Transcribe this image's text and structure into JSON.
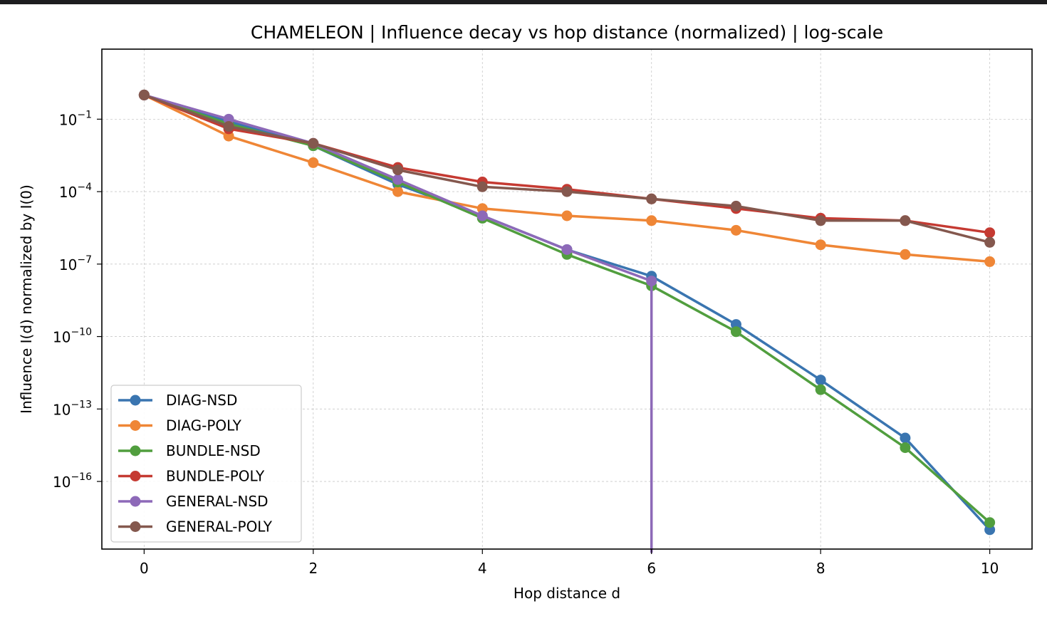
{
  "chart_data": {
    "type": "line",
    "title": "CHAMELEON | Influence decay vs hop distance (normalized) | log-scale",
    "xlabel": "Hop distance d",
    "ylabel": "Influence I(d) normalized by I(0)",
    "yscale": "log",
    "xlim": [
      -0.5,
      10.5
    ],
    "ylim_log10": [
      -18.8,
      1.9
    ],
    "grid": true,
    "legend_position": "lower-left",
    "x_ticks": [
      {
        "value": 0,
        "label": "0"
      },
      {
        "value": 2,
        "label": "2"
      },
      {
        "value": 4,
        "label": "4"
      },
      {
        "value": 6,
        "label": "6"
      },
      {
        "value": 8,
        "label": "8"
      },
      {
        "value": 10,
        "label": "10"
      }
    ],
    "y_ticks": [
      {
        "exp": -1,
        "label": "10",
        "sup": "−1"
      },
      {
        "exp": -4,
        "label": "10",
        "sup": "−4"
      },
      {
        "exp": -7,
        "label": "10",
        "sup": "−7"
      },
      {
        "exp": -10,
        "label": "10",
        "sup": "−10"
      },
      {
        "exp": -13,
        "label": "10",
        "sup": "−13"
      },
      {
        "exp": -16,
        "label": "10",
        "sup": "−16"
      }
    ],
    "x": [
      0,
      1,
      2,
      3,
      4,
      5,
      6,
      7,
      8,
      9,
      10
    ],
    "series": [
      {
        "name": "DIAG-NSD",
        "color": "#3a75b0",
        "log10_values": [
          0.0,
          -1.1,
          -2.1,
          -3.7,
          -5.0,
          -6.4,
          -7.5,
          -9.5,
          -11.8,
          -14.2,
          -18.0
        ]
      },
      {
        "name": "DIAG-POLY",
        "color": "#ef8636",
        "log10_values": [
          0.0,
          -1.7,
          -2.8,
          -4.0,
          -4.7,
          -5.0,
          -5.2,
          -5.6,
          -6.2,
          -6.6,
          -6.9
        ]
      },
      {
        "name": "BUNDLE-NSD",
        "color": "#519e3e",
        "log10_values": [
          0.0,
          -1.2,
          -2.1,
          -3.6,
          -5.1,
          -6.6,
          -7.9,
          -9.8,
          -12.2,
          -14.6,
          -17.7
        ]
      },
      {
        "name": "BUNDLE-POLY",
        "color": "#c53a32",
        "log10_values": [
          0.0,
          -1.4,
          -2.0,
          -3.0,
          -3.6,
          -3.9,
          -4.3,
          -4.7,
          -5.1,
          -5.2,
          -5.7
        ]
      },
      {
        "name": "GENERAL-NSD",
        "color": "#8d69b8",
        "log10_values": [
          0.0,
          -1.0,
          -2.0,
          -3.5,
          -5.0,
          -6.4,
          -7.7,
          null,
          null,
          null,
          null
        ],
        "drop_to_zero_at": 6
      },
      {
        "name": "GENERAL-POLY",
        "color": "#84584e",
        "log10_values": [
          0.0,
          -1.3,
          -2.0,
          -3.1,
          -3.8,
          -4.0,
          -4.3,
          -4.6,
          -5.2,
          -5.2,
          -6.1
        ]
      }
    ]
  }
}
